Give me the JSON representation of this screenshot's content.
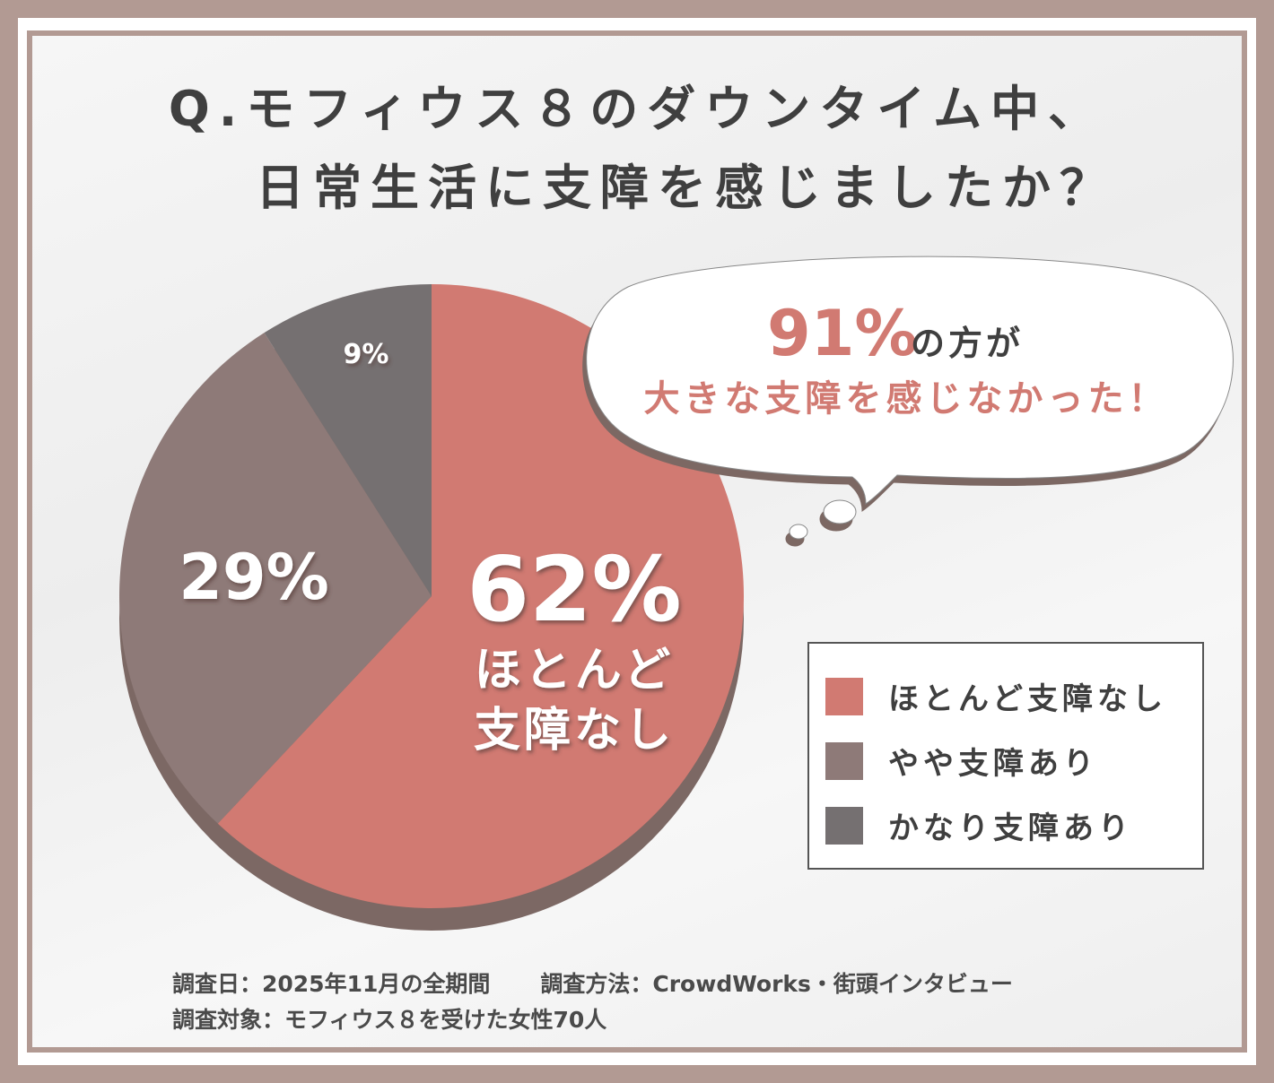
{
  "title": {
    "line1": "Q.モフィウス８のダウンタイム中、",
    "line2": "日常生活に支障を感じましたか？"
  },
  "bubble": {
    "percent": "91%",
    "suffix": "の方が",
    "line2": "大きな支障を感じなかった！"
  },
  "chart_data": {
    "type": "pie",
    "categories": [
      "ほとんど支障なし",
      "やや支障あり",
      "かなり支障あり"
    ],
    "values": [
      62,
      29,
      9
    ],
    "data_labels": [
      "62%",
      "29%",
      "9%"
    ],
    "slice_label": "ほとんど支障なし",
    "slice_label_lines": [
      "ほとんど",
      "支障なし"
    ],
    "colors": [
      "#d17a72",
      "#8e7a78",
      "#757071"
    ],
    "legend_position": "right"
  },
  "legend": [
    {
      "label": "ほとんど支障なし",
      "color": "#d17a72"
    },
    {
      "label": "やや支障あり",
      "color": "#8e7a78"
    },
    {
      "label": "かなり支障あり",
      "color": "#757071"
    }
  ],
  "footer": {
    "date": "調査日：2025年11月の全期間",
    "method": "調査方法：CrowdWorks・街頭インタビュー",
    "target": "調査対象：モフィウス８を受けた女性70人"
  }
}
